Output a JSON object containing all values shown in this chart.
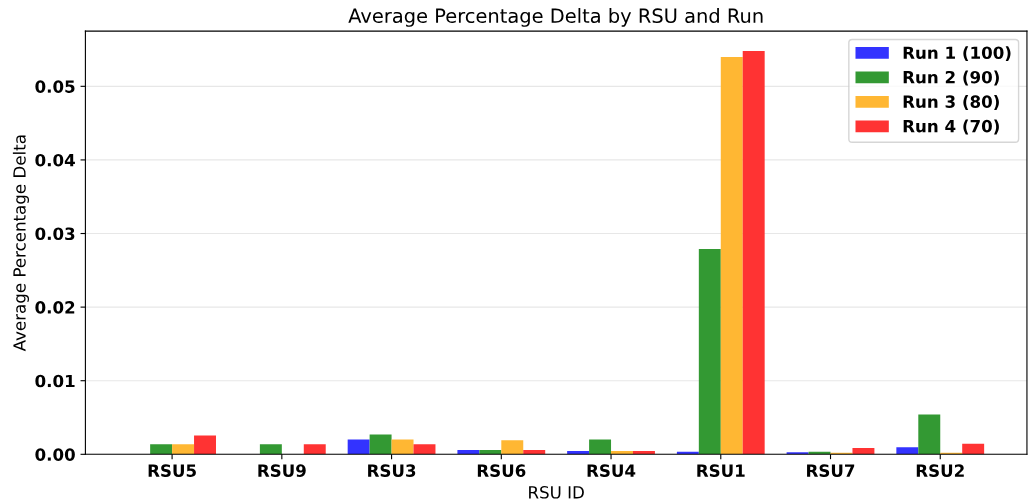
{
  "chart_data": {
    "type": "bar",
    "title": "Average Percentage Delta by RSU and Run",
    "xlabel": "RSU ID",
    "ylabel": "Average Percentage Delta",
    "categories": [
      "RSU5",
      "RSU9",
      "RSU3",
      "RSU6",
      "RSU4",
      "RSU1",
      "RSU7",
      "RSU2"
    ],
    "series": [
      {
        "name": "Run 1 (100)",
        "color": "#3333ff",
        "values": [
          0,
          0,
          0.002,
          0.0006,
          0.00045,
          0.00035,
          0.00027,
          0.00095
        ]
      },
      {
        "name": "Run 2 (90)",
        "color": "#339933",
        "values": [
          0.00136,
          0.00136,
          0.0027,
          0.0006,
          0.002,
          0.0279,
          0.00035,
          0.0054
        ]
      },
      {
        "name": "Run 3 (80)",
        "color": "#ffb733",
        "values": [
          0.00136,
          0,
          0.002,
          0.0019,
          0.00045,
          0.054,
          0.0002,
          0.0002
        ]
      },
      {
        "name": "Run 4 (70)",
        "color": "#ff3333",
        "values": [
          0.00254,
          0.00136,
          0.00136,
          0.0006,
          0.00045,
          0.0548,
          0.00086,
          0.00145
        ]
      }
    ],
    "ylim": [
      0,
      0.0575
    ],
    "yticks": [
      {
        "value": 0,
        "label": "0.00"
      },
      {
        "value": 0.01,
        "label": "0.01"
      },
      {
        "value": 0.02,
        "label": "0.02"
      },
      {
        "value": 0.03,
        "label": "0.03"
      },
      {
        "value": 0.04,
        "label": "0.04"
      },
      {
        "value": 0.05,
        "label": "0.05"
      }
    ],
    "grid": "y",
    "legend": "top right"
  }
}
